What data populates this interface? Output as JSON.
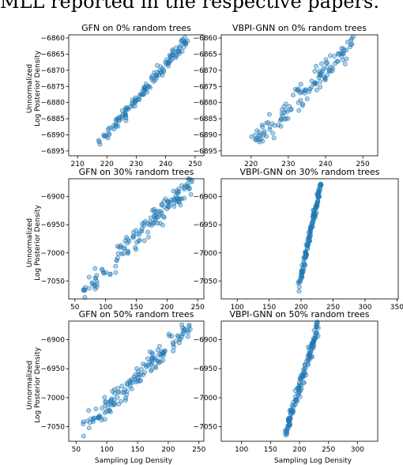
{
  "caption_fragment": "MLL reported in the respective papers.",
  "figure": {
    "ylabel_line1": "Unnormalized",
    "ylabel_line2": "Log Posterior Density",
    "xlabel": "Sampling Log Density"
  },
  "colors": {
    "point_fill": "#1f77b4",
    "point_edge": "#1f77b4"
  },
  "chart_data": [
    {
      "type": "scatter",
      "title": "GFN on 0% random trees",
      "xlim": [
        207,
        253
      ],
      "ylim": [
        -6896.5,
        -6859
      ],
      "xticks": [
        210,
        220,
        230,
        240,
        250
      ],
      "yticks": [
        -6860,
        -6865,
        -6870,
        -6875,
        -6880,
        -6885,
        -6890,
        -6895
      ],
      "trend": {
        "x0": 215,
        "x1": 247,
        "y0": -6895,
        "y1": -6861,
        "spread": 1.3,
        "n": 140,
        "seed": 11
      }
    },
    {
      "type": "scatter",
      "title": "VBPI-GNN on 0% random trees",
      "xlim": [
        212,
        254
      ],
      "ylim": [
        -6896.5,
        -6859
      ],
      "xticks": [
        220,
        230,
        240,
        250
      ],
      "yticks": [
        -6860,
        -6865,
        -6870,
        -6875,
        -6880,
        -6885,
        -6890,
        -6895
      ],
      "trend": {
        "x0": 220,
        "x1": 248,
        "y0": -6893,
        "y1": -6861,
        "spread": 2.6,
        "n": 130,
        "seed": 23
      }
    },
    {
      "type": "scatter",
      "title": "GFN on 30% random trees",
      "xlim": [
        40,
        260
      ],
      "ylim": [
        -7082,
        -6868
      ],
      "xticks": [
        50,
        100,
        150,
        200,
        250
      ],
      "yticks": [
        -6900,
        -6950,
        -7000,
        -7050
      ],
      "trend": {
        "x0": 60,
        "x1": 240,
        "y0": -7070,
        "y1": -6875,
        "spread": 14,
        "n": 150,
        "seed": 37
      }
    },
    {
      "type": "scatter",
      "title": "VBPI-GNN on 30% random trees",
      "xlim": [
        75,
        352
      ],
      "ylim": [
        -7082,
        -6868
      ],
      "xticks": [
        100,
        150,
        200,
        250,
        300,
        350
      ],
      "yticks": [
        -6900,
        -6950,
        -7000,
        -7050
      ],
      "trend": {
        "x0": 195,
        "x1": 232,
        "y0": -7065,
        "y1": -6872,
        "spread": 9,
        "n": 140,
        "seed": 41
      }
    },
    {
      "type": "scatter",
      "title": "GFN on 50% random trees",
      "xlim": [
        38,
        258
      ],
      "ylim": [
        -7075,
        -6868
      ],
      "xticks": [
        50,
        100,
        150,
        200,
        250
      ],
      "yticks": [
        -6900,
        -6950,
        -7000,
        -7050
      ],
      "trend": {
        "x0": 50,
        "x1": 238,
        "y0": -7065,
        "y1": -6875,
        "spread": 13,
        "n": 150,
        "seed": 53
      }
    },
    {
      "type": "scatter",
      "title": "VBPI-GNN on 50% random trees",
      "xlim": [
        65,
        335
      ],
      "ylim": [
        -7075,
        -6868
      ],
      "xticks": [
        100,
        150,
        200,
        250,
        300
      ],
      "yticks": [
        -6900,
        -6950,
        -7000,
        -7050
      ],
      "trend": {
        "x0": 175,
        "x1": 232,
        "y0": -7062,
        "y1": -6878,
        "spread": 10,
        "n": 140,
        "seed": 67
      }
    }
  ]
}
